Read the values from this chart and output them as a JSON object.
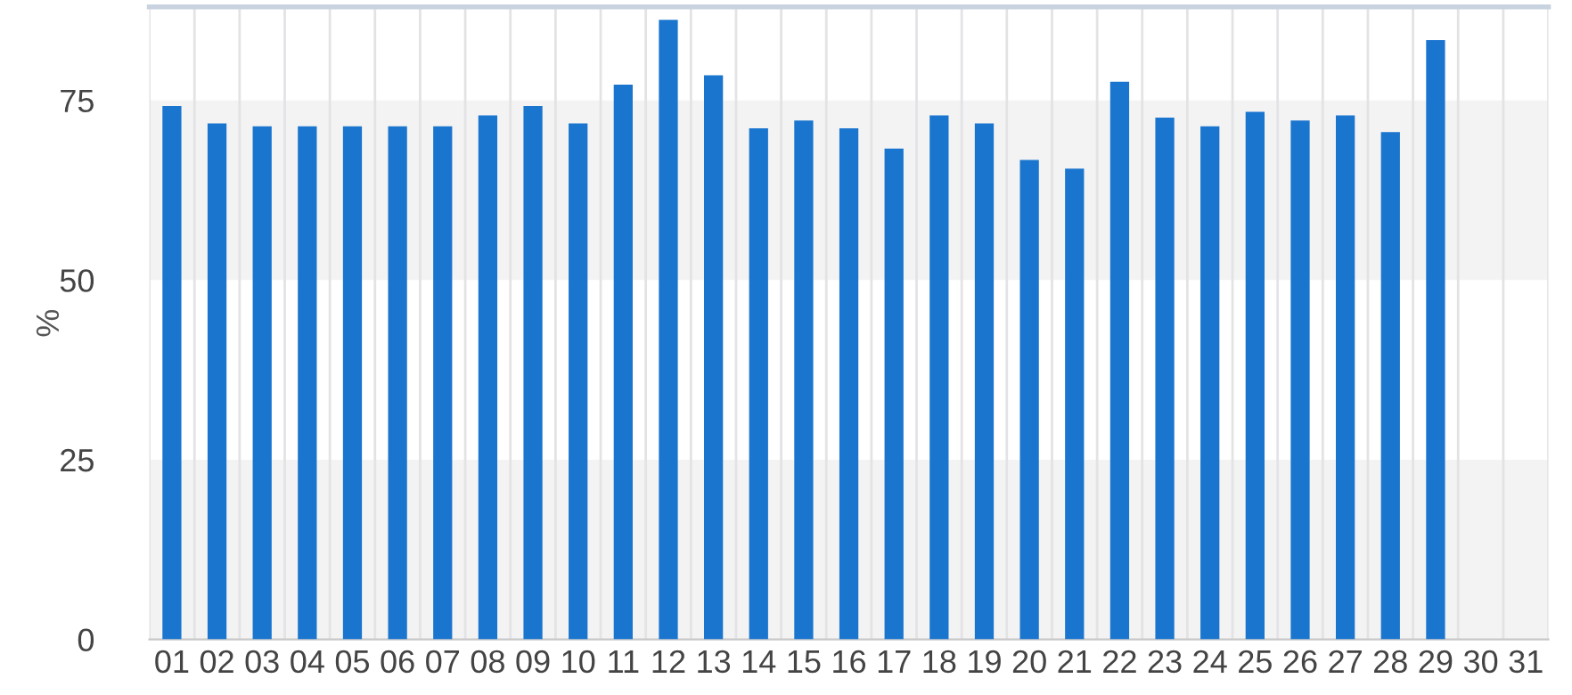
{
  "chart_data": {
    "type": "bar",
    "ylabel": "%",
    "categories": [
      "01",
      "02",
      "03",
      "04",
      "05",
      "06",
      "07",
      "08",
      "09",
      "10",
      "11",
      "12",
      "13",
      "14",
      "15",
      "16",
      "17",
      "18",
      "19",
      "20",
      "21",
      "22",
      "23",
      "24",
      "25",
      "26",
      "27",
      "28",
      "29",
      "30",
      "31"
    ],
    "values": [
      74.2,
      71.8,
      71.4,
      71.4,
      71.4,
      71.4,
      71.4,
      72.9,
      74.2,
      71.8,
      77.2,
      86.2,
      78.5,
      71.1,
      72.2,
      71.1,
      68.3,
      72.9,
      71.8,
      66.7,
      65.5,
      77.6,
      72.6,
      71.4,
      73.4,
      72.2,
      72.9,
      70.6,
      83.4,
      null,
      null
    ],
    "color": "#1a75cf",
    "ylim": [
      0,
      88
    ],
    "yticks": [
      0,
      25,
      50,
      75
    ],
    "grid": "x",
    "bands": [
      {
        "axis": "y",
        "from": 0,
        "to": 25,
        "color": "#f3f3f3"
      },
      {
        "axis": "y",
        "from": 50,
        "to": 75,
        "color": "#f3f3f3"
      }
    ]
  }
}
